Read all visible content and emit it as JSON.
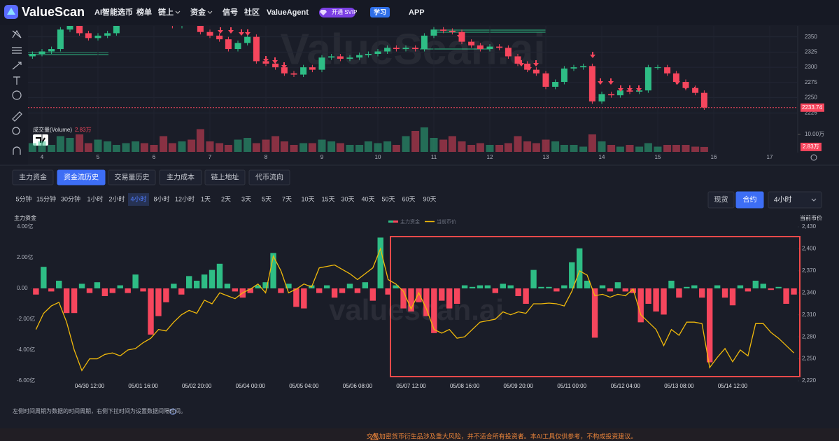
{
  "nav": {
    "logo": "ValueScan",
    "items": [
      "AI智能选币",
      "榜单",
      "链上",
      "资金",
      "信号",
      "社区",
      "ValueAgent"
    ],
    "svip": "开通 SVIP",
    "learn": "学习",
    "app": "APP"
  },
  "tabs": {
    "items": [
      "主力资金",
      "资金流历史",
      "交易量历史",
      "主力成本",
      "链上地址",
      "代币流向"
    ],
    "active": 1
  },
  "intervals": {
    "items": [
      "5分钟",
      "15分钟",
      "30分钟",
      "1小时",
      "2小时",
      "4小时",
      "8小时",
      "12小时",
      "1天",
      "2天",
      "3天",
      "5天",
      "7天",
      "10天",
      "15天",
      "30天",
      "40天",
      "50天",
      "60天",
      "90天"
    ],
    "active": 5
  },
  "market": {
    "items": [
      "现货",
      "合约"
    ],
    "active": 1
  },
  "select": "4小时",
  "note": "左侧时间周期为数据的时间周期，右侧下拉时间为设置数据间隔时间。",
  "footer": "交易加密货币衍生品涉及重大风险，并不适合所有投资者。本AI工具仅供参考，不构成投资建议。",
  "chart_data": [
    {
      "type": "candlestick",
      "watermark": "ValueScan.ai",
      "up_color": "#2ebd85",
      "down_color": "#f6465d",
      "x": [
        3.83,
        4,
        4.17,
        4.33,
        4.5,
        4.67,
        4.83,
        5,
        5.17,
        5.33,
        5.5,
        5.67,
        5.83,
        6,
        6.17,
        6.33,
        6.5,
        6.67,
        6.83,
        7,
        7.17,
        7.33,
        7.5,
        7.67,
        7.83,
        8,
        8.17,
        8.33,
        8.5,
        8.67,
        8.83,
        9,
        9.17,
        9.33,
        9.5,
        9.67,
        9.83,
        10,
        10.17,
        10.33,
        10.5,
        10.67,
        10.83,
        11,
        11.17,
        11.33,
        11.5,
        11.67,
        11.83,
        12,
        12.17,
        12.33,
        12.5,
        12.67,
        12.83,
        13,
        13.17,
        13.33,
        13.5,
        13.67,
        13.83,
        14,
        14.17,
        14.33,
        14.5,
        14.67,
        14.83,
        15,
        15.17,
        15.33,
        15.5,
        15.67,
        15.83
      ],
      "open": [
        2318,
        2322,
        2326,
        2330,
        2362,
        2378,
        2356,
        2348,
        2352,
        2356,
        2372,
        2380,
        2385,
        2382,
        2378,
        2374,
        2368,
        2375,
        2372,
        2358,
        2352,
        2346,
        2330,
        2340,
        2350,
        2310,
        2306,
        2300,
        2290,
        2288,
        2300,
        2296,
        2316,
        2318,
        2314,
        2316,
        2320,
        2322,
        2326,
        2332,
        2330,
        2332,
        2330,
        2352,
        2362,
        2360,
        2358,
        2342,
        2336,
        2330,
        2334,
        2332,
        2318,
        2306,
        2296,
        2290,
        2268,
        2276,
        2298,
        2300,
        2302,
        2244,
        2256,
        2254,
        2262,
        2260,
        2262,
        2300,
        2300,
        2290,
        2276,
        2266,
        2258
      ],
      "high": [
        2326,
        2330,
        2334,
        2366,
        2382,
        2382,
        2360,
        2356,
        2360,
        2376,
        2384,
        2389,
        2389,
        2386,
        2382,
        2378,
        2379,
        2379,
        2376,
        2362,
        2356,
        2350,
        2344,
        2354,
        2354,
        2314,
        2310,
        2304,
        2294,
        2304,
        2304,
        2320,
        2322,
        2322,
        2320,
        2324,
        2326,
        2330,
        2336,
        2336,
        2336,
        2336,
        2356,
        2366,
        2366,
        2364,
        2362,
        2346,
        2340,
        2338,
        2338,
        2336,
        2322,
        2310,
        2300,
        2294,
        2280,
        2302,
        2304,
        2306,
        2306,
        2260,
        2260,
        2266,
        2266,
        2266,
        2304,
        2304,
        2304,
        2294,
        2280,
        2270,
        2262
      ],
      "low": [
        2314,
        2318,
        2322,
        2326,
        2358,
        2352,
        2344,
        2344,
        2348,
        2352,
        2368,
        2376,
        2378,
        2374,
        2370,
        2364,
        2364,
        2368,
        2354,
        2348,
        2342,
        2326,
        2326,
        2336,
        2306,
        2302,
        2296,
        2286,
        2284,
        2284,
        2292,
        2292,
        2312,
        2310,
        2310,
        2312,
        2316,
        2318,
        2322,
        2326,
        2326,
        2326,
        2326,
        2348,
        2356,
        2354,
        2338,
        2332,
        2326,
        2326,
        2328,
        2314,
        2302,
        2292,
        2286,
        2264,
        2264,
        2272,
        2294,
        2296,
        2240,
        2240,
        2250,
        2250,
        2256,
        2256,
        2258,
        2296,
        2286,
        2272,
        2262,
        2254,
        2230
      ],
      "close": [
        2322,
        2326,
        2330,
        2362,
        2378,
        2356,
        2348,
        2352,
        2356,
        2372,
        2380,
        2385,
        2382,
        2378,
        2374,
        2368,
        2375,
        2372,
        2358,
        2352,
        2346,
        2330,
        2340,
        2350,
        2310,
        2306,
        2300,
        2290,
        2288,
        2300,
        2296,
        2316,
        2318,
        2314,
        2316,
        2320,
        2322,
        2326,
        2332,
        2330,
        2332,
        2330,
        2352,
        2362,
        2360,
        2358,
        2342,
        2336,
        2330,
        2334,
        2332,
        2318,
        2306,
        2296,
        2290,
        2268,
        2276,
        2298,
        2300,
        2302,
        2244,
        2256,
        2254,
        2262,
        2260,
        2262,
        2300,
        2300,
        2290,
        2276,
        2266,
        2258,
        2234
      ],
      "xlim": [
        3.75,
        17.5
      ],
      "xticks": [
        4,
        5,
        6,
        7,
        8,
        9,
        10,
        11,
        12,
        13,
        14,
        15,
        16,
        17
      ],
      "ylim": [
        2207,
        2368
      ],
      "yticks": [
        2225,
        2250,
        2275,
        2300,
        2325,
        2350
      ],
      "grid": true,
      "last_price": 2233.74,
      "volume": {
        "name": "成交量(Volume)",
        "values": [
          5,
          6,
          4,
          9,
          8,
          10,
          5,
          7,
          6,
          4,
          5,
          6,
          5,
          4,
          9,
          5,
          6,
          7,
          13,
          6,
          5,
          4,
          7,
          8,
          5,
          7,
          9,
          6,
          4,
          5,
          5,
          7,
          6,
          5,
          4,
          4,
          6,
          5,
          6,
          4,
          9,
          12,
          14,
          8,
          7,
          9,
          6,
          4,
          5,
          4,
          4,
          5,
          9,
          6,
          5,
          7,
          6,
          4,
          4,
          3,
          10,
          6,
          4,
          3,
          4,
          3,
          5,
          3,
          4,
          4,
          4,
          3,
          2.83
        ],
        "last": {
          "value": 2.83,
          "label": "2.83万"
        },
        "ylim": [
          0,
          13.6
        ],
        "yticks": [
          {
            "value": 10,
            "label": "10.00万"
          }
        ]
      }
    },
    {
      "type": "combo",
      "watermark": "valuescan.ai",
      "ylabel": "主力资金",
      "y2label": "当前币价",
      "legend": "top",
      "categories": [
        null,
        null,
        null,
        null,
        null,
        null,
        null,
        "04/30 12:00",
        null,
        null,
        null,
        null,
        null,
        null,
        "05/01 16:00",
        null,
        null,
        null,
        null,
        null,
        null,
        "05/02 20:00",
        null,
        null,
        null,
        null,
        null,
        null,
        "05/04 00:00",
        null,
        null,
        null,
        null,
        null,
        null,
        "05/05 04:00",
        null,
        null,
        null,
        null,
        null,
        null,
        "05/06 08:00",
        null,
        null,
        null,
        null,
        null,
        null,
        "05/07 12:00",
        null,
        null,
        null,
        null,
        null,
        null,
        "05/08 16:00",
        null,
        null,
        null,
        null,
        null,
        null,
        "05/09 20:00",
        null,
        null,
        null,
        null,
        null,
        null,
        "05/11 00:00",
        null,
        null,
        null,
        null,
        null,
        null,
        "05/12 04:00",
        null,
        null,
        null,
        null,
        null,
        null,
        "05/13 08:00",
        null,
        null,
        null,
        null,
        null,
        null,
        "05/14 12:00",
        null,
        null,
        null,
        null,
        null,
        null,
        null,
        null
      ],
      "series": [
        {
          "name": "主力资金",
          "type": "bar",
          "color": "#2ebd85",
          "negative_color": "#f6465d",
          "values": [
            -0.4,
            1.4,
            -0.2,
            0.5,
            -1.6,
            -1.6,
            0.3,
            -0.3,
            0.4,
            -0.5,
            -0.3,
            0.2,
            -0.3,
            0.9,
            -0.2,
            -3.0,
            -1.8,
            -0.9,
            0.3,
            -0.4,
            0.8,
            0.5,
            0.9,
            1.2,
            1.6,
            0.3,
            -0.2,
            -0.6,
            -0.3,
            0.2,
            0.4,
            2.3,
            -0.3,
            0.3,
            -1.2,
            -1.3,
            0.2,
            -0.3,
            0.2,
            -0.6,
            -0.3,
            0.3,
            -0.3,
            0.4,
            -0.8,
            3.3,
            -0.4,
            0.2,
            -1.3,
            -1.5,
            -0.9,
            -1.8,
            -2.9,
            -0.8,
            -1.3,
            -1.0,
            0.2,
            0.1,
            0.2,
            0.2,
            -0.3,
            0.3,
            0.2,
            -0.5,
            -1.0,
            1.2,
            0.1,
            0.1,
            -0.2,
            0.2,
            1.7,
            2.6,
            0.5,
            -3.2,
            0.2,
            -0.2,
            0.4,
            -0.2,
            -0.3,
            -2.2,
            -1.0,
            -1.5,
            -1.7,
            0.5,
            -0.6,
            0.1,
            0.2,
            -0.6,
            -4.8,
            0.2,
            -0.6,
            -1.1,
            0.2,
            -0.2,
            0.5,
            0.3,
            -0.1,
            0.1,
            -1.0,
            -0.4
          ]
        },
        {
          "name": "当前币价",
          "type": "line",
          "color": "#f0b90b",
          "axis": "y2",
          "values": [
            2290,
            2312,
            2322,
            2327,
            2300,
            2262,
            2234,
            2250,
            2250,
            2256,
            2258,
            2254,
            2262,
            2264,
            2272,
            2278,
            2290,
            2288,
            2300,
            2310,
            2316,
            2312,
            2330,
            2325,
            2340,
            2336,
            2332,
            2340,
            2345,
            2352,
            2340,
            2390,
            2370,
            2340,
            2345,
            2352,
            2348,
            2374,
            2376,
            2378,
            2372,
            2366,
            2358,
            2366,
            2374,
            2400,
            2358,
            2352,
            2342,
            2318,
            2340,
            2318,
            2290,
            2285,
            2290,
            2278,
            2280,
            2290,
            2300,
            2302,
            2304,
            2314,
            2310,
            2314,
            2312,
            2325,
            2325,
            2326,
            2325,
            2322,
            2342,
            2370,
            2364,
            2336,
            2338,
            2334,
            2338,
            2336,
            2345,
            2310,
            2300,
            2290,
            2268,
            2290,
            2282,
            2300,
            2300,
            2298,
            2238,
            2252,
            2264,
            2246,
            2262,
            2254,
            2298,
            2298,
            2286,
            2278,
            2268,
            2258
          ]
        }
      ],
      "ylim": [
        -6,
        4
      ],
      "yticks": [
        {
          "value": 4,
          "label": "4.00亿"
        },
        {
          "value": 2,
          "label": "2.00亿"
        },
        {
          "value": 0,
          "label": "0.00"
        },
        {
          "value": -2,
          "label": "-2.00亿"
        },
        {
          "value": -4,
          "label": "-4.00亿"
        },
        {
          "value": -6,
          "label": "-6.00亿"
        }
      ],
      "y2lim": [
        2220,
        2430
      ],
      "y2ticks": [
        {
          "value": 2220,
          "label": "2,220"
        },
        {
          "value": 2250,
          "label": "2,250"
        },
        {
          "value": 2280,
          "label": "2,280"
        },
        {
          "value": 2310,
          "label": "2,310"
        },
        {
          "value": 2340,
          "label": "2,340"
        },
        {
          "value": 2370,
          "label": "2,370"
        },
        {
          "value": 2400,
          "label": "2,400"
        },
        {
          "value": 2430,
          "label": "2,430"
        }
      ]
    }
  ]
}
